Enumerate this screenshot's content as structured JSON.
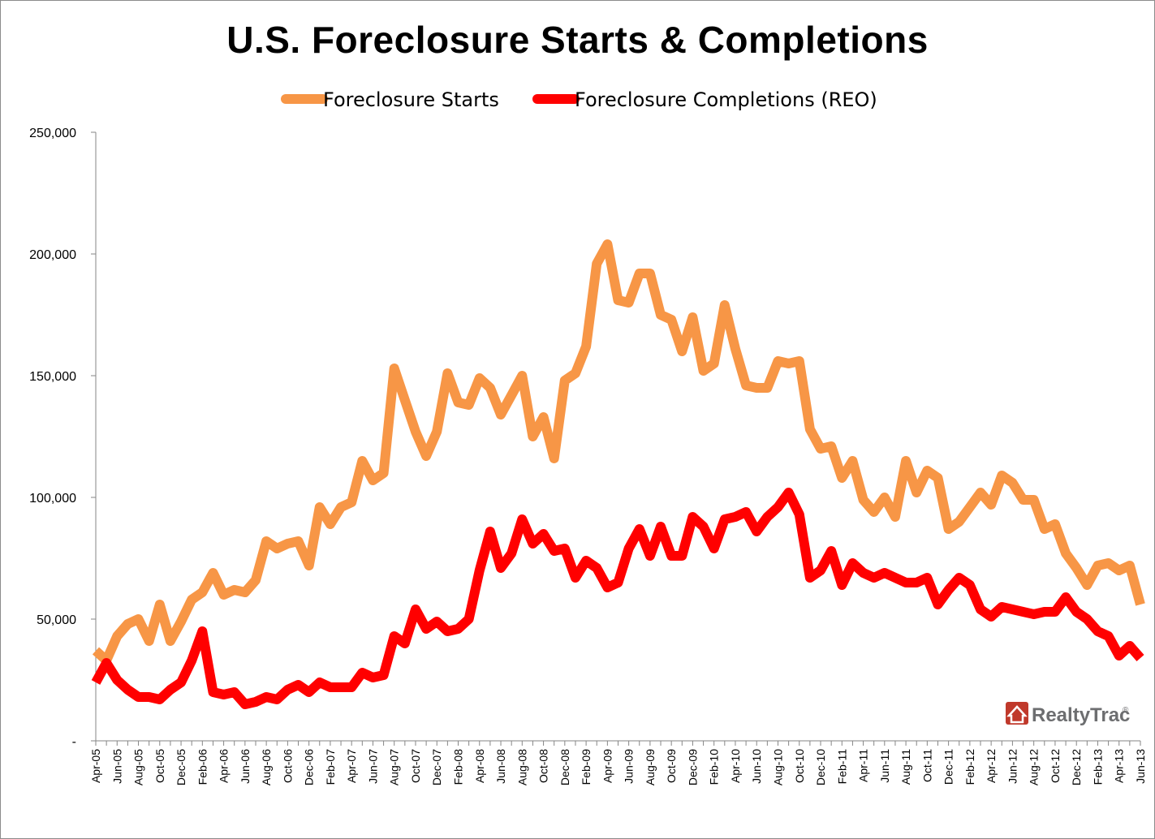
{
  "chart_data": {
    "type": "line",
    "title": "U.S. Foreclosure Starts & Completions",
    "xlabel": "",
    "ylabel": "",
    "ylim": [
      0,
      250000
    ],
    "y_ticks": [
      0,
      50000,
      100000,
      150000,
      200000,
      250000
    ],
    "y_tick_labels": [
      "-",
      "50,000",
      "100,000",
      "150,000",
      "200,000",
      "250,000"
    ],
    "x_tick_labels": [
      "Apr-05",
      "Jun-05",
      "Aug-05",
      "Oct-05",
      "Dec-05",
      "Feb-06",
      "Apr-06",
      "Jun-06",
      "Aug-06",
      "Oct-06",
      "Dec-06",
      "Feb-07",
      "Apr-07",
      "Jun-07",
      "Aug-07",
      "Oct-07",
      "Dec-07",
      "Feb-08",
      "Apr-08",
      "Jun-08",
      "Aug-08",
      "Oct-08",
      "Dec-08",
      "Feb-09",
      "Apr-09",
      "Jun-09",
      "Aug-09",
      "Oct-09",
      "Dec-09",
      "Feb-10",
      "Apr-10",
      "Jun-10",
      "Aug-10",
      "Oct-10",
      "Dec-10",
      "Feb-11",
      "Apr-11",
      "Jun-11",
      "Aug-11",
      "Oct-11",
      "Dec-11",
      "Feb-12",
      "Apr-12",
      "Jun-12",
      "Aug-12",
      "Oct-12",
      "Dec-12",
      "Feb-13",
      "Apr-13",
      "Jun-13"
    ],
    "legend_position": "top-center",
    "grid": false,
    "series": [
      {
        "name": "Foreclosure Starts",
        "color": "#f79646",
        "values": [
          37000,
          33000,
          43000,
          48000,
          50000,
          41000,
          56000,
          41000,
          49000,
          58000,
          61000,
          69000,
          60000,
          62000,
          61000,
          66000,
          82000,
          79000,
          81000,
          82000,
          72000,
          96000,
          89000,
          96000,
          98000,
          115000,
          107000,
          110000,
          153000,
          140000,
          127000,
          117000,
          127000,
          151000,
          139000,
          138000,
          149000,
          145000,
          134000,
          142000,
          150000,
          125000,
          133000,
          116000,
          148000,
          151000,
          162000,
          196000,
          204000,
          181000,
          180000,
          192000,
          192000,
          175000,
          173000,
          160000,
          174000,
          152000,
          155000,
          179000,
          161000,
          146000,
          145000,
          145000,
          156000,
          155000,
          156000,
          128000,
          120000,
          121000,
          108000,
          115000,
          99000,
          94000,
          100000,
          92000,
          115000,
          102000,
          111000,
          108000,
          87000,
          90000,
          96000,
          102000,
          97000,
          109000,
          106000,
          99000,
          99000,
          87000,
          89000,
          77000,
          71000,
          64000,
          72000,
          73000,
          70000,
          72000,
          56000
        ]
      },
      {
        "name": "Foreclosure Completions (REO)",
        "color": "#ff0000",
        "values": [
          24000,
          32000,
          25000,
          21000,
          18000,
          18000,
          17000,
          21000,
          24000,
          33000,
          45000,
          20000,
          19000,
          20000,
          15000,
          16000,
          18000,
          17000,
          21000,
          23000,
          20000,
          24000,
          22000,
          22000,
          22000,
          28000,
          26000,
          27000,
          43000,
          40000,
          54000,
          46000,
          49000,
          45000,
          46000,
          50000,
          70000,
          86000,
          71000,
          77000,
          91000,
          81000,
          85000,
          78000,
          79000,
          67000,
          74000,
          71000,
          63000,
          65000,
          79000,
          87000,
          76000,
          88000,
          76000,
          76000,
          92000,
          88000,
          79000,
          91000,
          92000,
          94000,
          86000,
          92000,
          96000,
          102000,
          93000,
          67000,
          70000,
          78000,
          64000,
          73000,
          69000,
          67000,
          69000,
          67000,
          65000,
          65000,
          67000,
          56000,
          62000,
          67000,
          64000,
          54000,
          51000,
          55000,
          54000,
          53000,
          52000,
          53000,
          53000,
          59000,
          53000,
          50000,
          45000,
          43000,
          35000,
          39000,
          34000
        ]
      }
    ]
  },
  "logo": {
    "text": "RealtyTrac",
    "trademark": "®"
  }
}
